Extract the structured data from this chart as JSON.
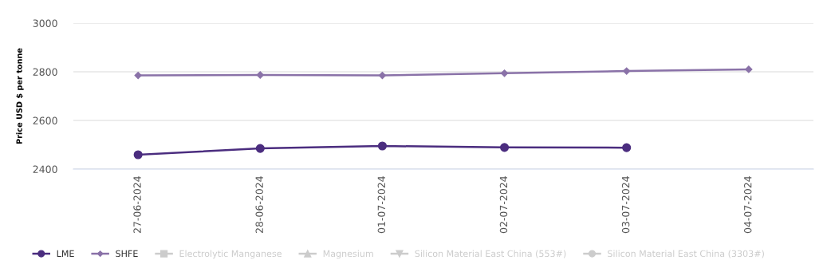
{
  "chart_data": {
    "type": "line",
    "ylabel": "Price USD $ per tonne",
    "categories": [
      "27-06-2024",
      "28-06-2024",
      "01-07-2024",
      "02-07-2024",
      "03-07-2024",
      "04-07-2024"
    ],
    "series": [
      {
        "name": "LME",
        "color": "#4b2d7f",
        "marker": "circle",
        "values": [
          2459,
          2485,
          2495,
          2489,
          2488,
          null
        ]
      },
      {
        "name": "SHFE",
        "color": "#8a72a8",
        "marker": "diamond",
        "values": [
          2785,
          2787,
          2785,
          2794,
          2803,
          2810
        ]
      },
      {
        "name": "Electrolytic Manganese",
        "color": "#cccccc",
        "marker": "square",
        "values": [
          null,
          null,
          null,
          null,
          null,
          null
        ]
      },
      {
        "name": "Magnesium",
        "color": "#cccccc",
        "marker": "triangle",
        "values": [
          null,
          null,
          null,
          null,
          null,
          null
        ]
      },
      {
        "name": "Silicon Material East China (553#)",
        "color": "#cccccc",
        "marker": "triangle_down",
        "values": [
          null,
          null,
          null,
          null,
          null,
          null
        ]
      },
      {
        "name": "Silicon Material East China (3303#)",
        "color": "#cccccc",
        "marker": "circle",
        "values": [
          null,
          null,
          null,
          null,
          null,
          null
        ]
      }
    ],
    "ylim": [
      2400,
      3000
    ],
    "yticks": [
      2400,
      2600,
      2800,
      3000
    ],
    "grid": "y",
    "legend": "bottom"
  }
}
